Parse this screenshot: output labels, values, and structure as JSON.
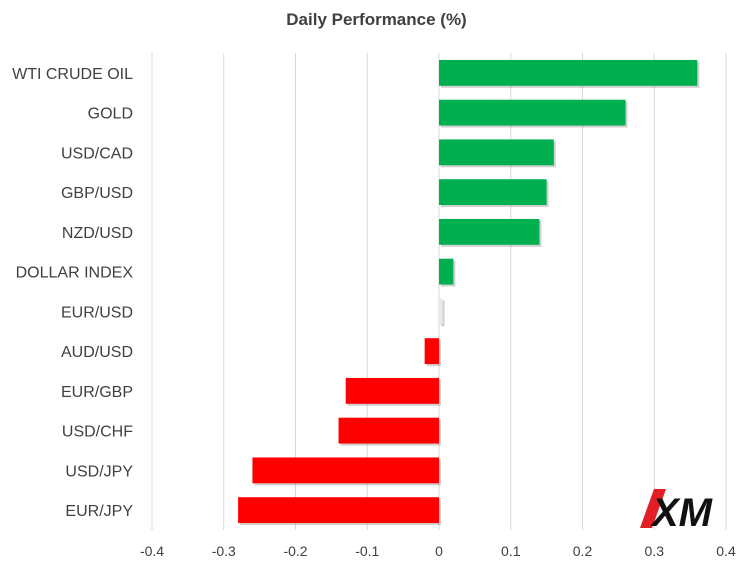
{
  "chart_data": {
    "type": "bar",
    "orientation": "horizontal",
    "title": "Daily Performance (%)",
    "xlabel": "",
    "ylabel": "",
    "categories": [
      "WTI CRUDE OIL",
      "GOLD",
      "USD/CAD",
      "GBP/USD",
      "NZD/USD",
      "DOLLAR INDEX",
      "EUR/USD",
      "AUD/USD",
      "EUR/GBP",
      "USD/CHF",
      "USD/JPY",
      "EUR/JPY"
    ],
    "values": [
      0.36,
      0.26,
      0.16,
      0.15,
      0.14,
      0.02,
      0.005,
      -0.02,
      -0.13,
      -0.14,
      -0.26,
      -0.28
    ],
    "xlim": [
      -0.4,
      0.4
    ],
    "xticks": [
      "-0.4",
      "-0.3",
      "-0.2",
      "-0.1",
      "0",
      "0.1",
      "0.2",
      "0.3",
      "0.4"
    ],
    "xtick_values": [
      -0.4,
      -0.3,
      -0.2,
      -0.1,
      0,
      0.1,
      0.2,
      0.3,
      0.4
    ],
    "grid": "vertical",
    "colors": {
      "positive": "#00b050",
      "negative": "#ff0000",
      "grid": "#d9d9d9"
    }
  },
  "logo": {
    "text": "XM",
    "accent": "#e31e24"
  }
}
